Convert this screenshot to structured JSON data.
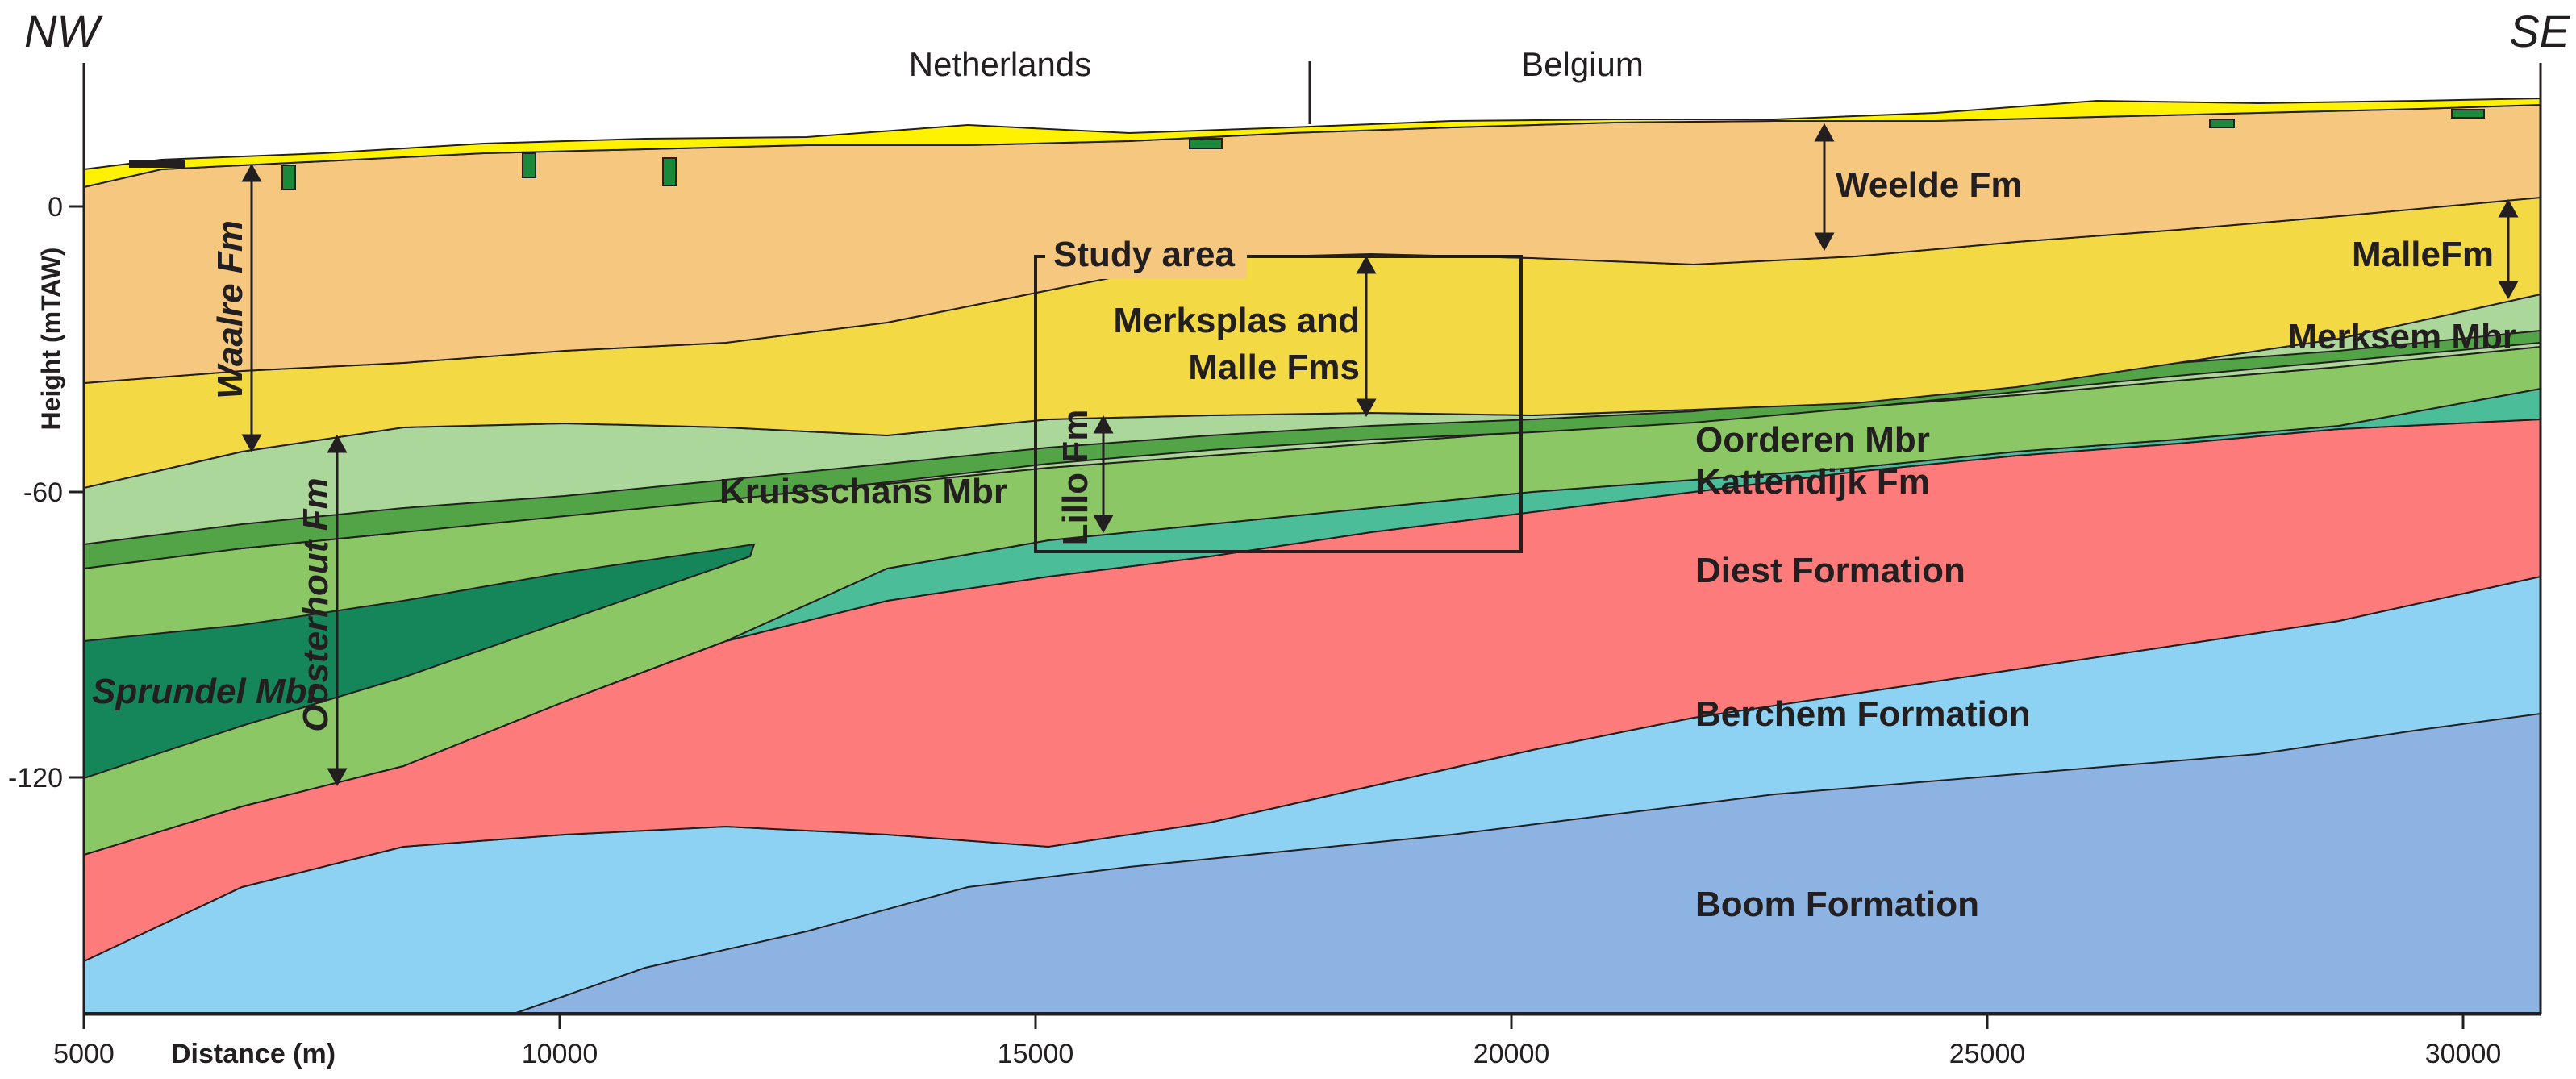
{
  "orientation": {
    "left": "NW",
    "right": "SE"
  },
  "countries": {
    "left": "Netherlands",
    "right": "Belgium"
  },
  "axes": {
    "y_label": "Height (mTAW)",
    "x_label": "Distance (m)",
    "y_ticks": [
      "0",
      "-60",
      "-120"
    ],
    "x_ticks": [
      "5000",
      "10000",
      "15000",
      "20000",
      "25000",
      "30000"
    ]
  },
  "study_area": {
    "label": "Study area"
  },
  "units": {
    "weelde": "Weelde Fm",
    "waalre": "Waalre Fm",
    "malle": "MalleFm",
    "merksplas_1": "Merksplas and",
    "merksplas_2": "Malle Fms",
    "merksem": "Merksem Mbr",
    "oorderen": "Oorderen Mbr",
    "kattendijk": "Kattendijk Fm",
    "kruisschans": "Kruisschans Mbr",
    "lillo": "Lillo Fm",
    "oosterhout": "Oosterhout Fm",
    "sprundel": "Sprundel Mbr",
    "diest": "Diest Formation",
    "berchem": "Berchem Formation",
    "boom": "Boom Formation"
  },
  "colors": {
    "surface_yellow": "#fff200",
    "weelde": "#f6c77f",
    "merksplas_malle": "#f3da45",
    "merksem": "#acd79a",
    "kruisschans": "#52a447",
    "oorderen": "#8cc765",
    "kattendijk": "#4bbd98",
    "sprundel": "#15865a",
    "diest": "#fd7b7b",
    "berchem": "#8ed2f3",
    "boom": "#8cb3e1",
    "peat": "#1a8a3a",
    "ink": "#231f20"
  }
}
